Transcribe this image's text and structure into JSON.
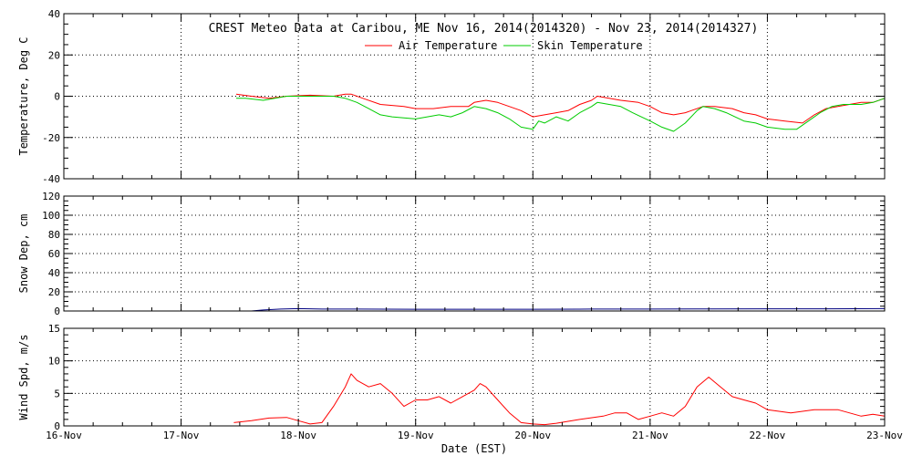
{
  "chart_data": {
    "type": "line",
    "title": "CREST Meteo Data at Caribou, ME   Nov 16, 2014(2014320) - Nov 23, 2014(2014327)",
    "xlabel": "Date (EST)",
    "x_ticks": [
      "16-Nov",
      "17-Nov",
      "18-Nov",
      "19-Nov",
      "20-Nov",
      "21-Nov",
      "22-Nov",
      "23-Nov"
    ],
    "x_range_days": [
      0,
      7
    ],
    "grid": true,
    "legend_position": "top-center",
    "panels": [
      {
        "id": "temperature",
        "ylabel": "Temperature, Deg C",
        "ylim": [
          -40,
          40
        ],
        "y_ticks": [
          -40,
          -20,
          0,
          20,
          40
        ],
        "series": [
          {
            "name": "Air Temperature",
            "color": "#ff0000",
            "points": [
              [
                1.47,
                1
              ],
              [
                1.6,
                0
              ],
              [
                1.75,
                -1
              ],
              [
                1.9,
                0
              ],
              [
                2.1,
                0.5
              ],
              [
                2.3,
                0
              ],
              [
                2.4,
                1
              ],
              [
                2.45,
                1
              ],
              [
                2.55,
                -1
              ],
              [
                2.7,
                -4
              ],
              [
                2.9,
                -5
              ],
              [
                3.0,
                -6
              ],
              [
                3.15,
                -6
              ],
              [
                3.3,
                -5
              ],
              [
                3.45,
                -5
              ],
              [
                3.5,
                -3
              ],
              [
                3.6,
                -2
              ],
              [
                3.7,
                -3
              ],
              [
                3.8,
                -5
              ],
              [
                3.9,
                -7
              ],
              [
                4.0,
                -10
              ],
              [
                4.1,
                -9
              ],
              [
                4.2,
                -8
              ],
              [
                4.3,
                -7
              ],
              [
                4.4,
                -4
              ],
              [
                4.5,
                -2
              ],
              [
                4.55,
                0
              ],
              [
                4.65,
                -1
              ],
              [
                4.75,
                -2
              ],
              [
                4.9,
                -3
              ],
              [
                5.0,
                -5
              ],
              [
                5.1,
                -8
              ],
              [
                5.2,
                -9
              ],
              [
                5.3,
                -8
              ],
              [
                5.35,
                -7
              ],
              [
                5.45,
                -5
              ],
              [
                5.55,
                -5
              ],
              [
                5.7,
                -6
              ],
              [
                5.8,
                -8
              ],
              [
                5.9,
                -9
              ],
              [
                6.0,
                -11
              ],
              [
                6.15,
                -12
              ],
              [
                6.3,
                -13
              ],
              [
                6.4,
                -9
              ],
              [
                6.5,
                -6
              ],
              [
                6.6,
                -5
              ],
              [
                6.7,
                -4
              ],
              [
                6.8,
                -3
              ],
              [
                6.9,
                -3
              ],
              [
                7.0,
                -1
              ]
            ]
          },
          {
            "name": "Skin Temperature",
            "color": "#00cc00",
            "points": [
              [
                1.47,
                -1
              ],
              [
                1.55,
                -1
              ],
              [
                1.7,
                -2
              ],
              [
                1.8,
                -1
              ],
              [
                1.9,
                0
              ],
              [
                2.1,
                0
              ],
              [
                2.3,
                0
              ],
              [
                2.4,
                -1
              ],
              [
                2.5,
                -3
              ],
              [
                2.6,
                -6
              ],
              [
                2.7,
                -9
              ],
              [
                2.8,
                -10
              ],
              [
                3.0,
                -11
              ],
              [
                3.1,
                -10
              ],
              [
                3.2,
                -9
              ],
              [
                3.3,
                -10
              ],
              [
                3.4,
                -8
              ],
              [
                3.5,
                -5
              ],
              [
                3.6,
                -6
              ],
              [
                3.7,
                -8
              ],
              [
                3.8,
                -11
              ],
              [
                3.9,
                -15
              ],
              [
                4.0,
                -16
              ],
              [
                4.05,
                -12
              ],
              [
                4.1,
                -13
              ],
              [
                4.2,
                -10
              ],
              [
                4.3,
                -12
              ],
              [
                4.4,
                -8
              ],
              [
                4.5,
                -5
              ],
              [
                4.55,
                -3
              ],
              [
                4.65,
                -4
              ],
              [
                4.75,
                -5
              ],
              [
                4.85,
                -8
              ],
              [
                5.0,
                -12
              ],
              [
                5.1,
                -15
              ],
              [
                5.2,
                -17
              ],
              [
                5.3,
                -13
              ],
              [
                5.4,
                -7
              ],
              [
                5.45,
                -5
              ],
              [
                5.55,
                -6
              ],
              [
                5.65,
                -8
              ],
              [
                5.8,
                -12
              ],
              [
                5.9,
                -13
              ],
              [
                6.0,
                -15
              ],
              [
                6.15,
                -16
              ],
              [
                6.25,
                -16
              ],
              [
                6.35,
                -12
              ],
              [
                6.45,
                -8
              ],
              [
                6.55,
                -5
              ],
              [
                6.65,
                -4
              ],
              [
                6.8,
                -4
              ],
              [
                6.9,
                -3
              ],
              [
                7.0,
                -1
              ]
            ]
          }
        ]
      },
      {
        "id": "snow_depth",
        "ylabel": "Snow Dep, cm",
        "ylim": [
          0,
          120
        ],
        "y_ticks": [
          0,
          20,
          40,
          60,
          80,
          100,
          120
        ],
        "series": [
          {
            "name": "",
            "color": "#000080",
            "points": [
              [
                1.6,
                0
              ],
              [
                1.7,
                1
              ],
              [
                1.85,
                2
              ],
              [
                2.0,
                2.5
              ],
              [
                2.2,
                2
              ],
              [
                2.5,
                2
              ],
              [
                3.0,
                1.8
              ],
              [
                3.5,
                1.8
              ],
              [
                4.0,
                1.8
              ],
              [
                4.5,
                2
              ],
              [
                5.0,
                2
              ],
              [
                5.5,
                2.2
              ],
              [
                6.0,
                2.3
              ],
              [
                6.5,
                2.3
              ],
              [
                7.0,
                2.5
              ]
            ]
          }
        ]
      },
      {
        "id": "wind_speed",
        "ylabel": "Wind Spd, m/s",
        "ylim": [
          0,
          15
        ],
        "y_ticks": [
          0,
          5,
          10,
          15
        ],
        "series": [
          {
            "name": "",
            "color": "#ff0000",
            "points": [
              [
                1.45,
                0.5
              ],
              [
                1.6,
                0.8
              ],
              [
                1.75,
                1.2
              ],
              [
                1.9,
                1.3
              ],
              [
                2.0,
                0.8
              ],
              [
                2.1,
                0.3
              ],
              [
                2.2,
                0.5
              ],
              [
                2.3,
                3
              ],
              [
                2.4,
                6
              ],
              [
                2.45,
                8
              ],
              [
                2.5,
                7
              ],
              [
                2.6,
                6
              ],
              [
                2.7,
                6.5
              ],
              [
                2.8,
                5
              ],
              [
                2.9,
                3
              ],
              [
                3.0,
                4
              ],
              [
                3.1,
                4
              ],
              [
                3.2,
                4.5
              ],
              [
                3.3,
                3.5
              ],
              [
                3.4,
                4.5
              ],
              [
                3.5,
                5.5
              ],
              [
                3.55,
                6.5
              ],
              [
                3.6,
                6
              ],
              [
                3.7,
                4
              ],
              [
                3.8,
                2
              ],
              [
                3.9,
                0.5
              ],
              [
                4.0,
                0.3
              ],
              [
                4.1,
                0.2
              ],
              [
                4.2,
                0.4
              ],
              [
                4.4,
                1
              ],
              [
                4.6,
                1.5
              ],
              [
                4.7,
                2
              ],
              [
                4.8,
                2
              ],
              [
                4.9,
                1
              ],
              [
                5.0,
                1.5
              ],
              [
                5.1,
                2
              ],
              [
                5.2,
                1.5
              ],
              [
                5.3,
                3
              ],
              [
                5.4,
                6
              ],
              [
                5.5,
                7.5
              ],
              [
                5.6,
                6
              ],
              [
                5.7,
                4.5
              ],
              [
                5.8,
                4
              ],
              [
                5.9,
                3.5
              ],
              [
                6.0,
                2.5
              ],
              [
                6.2,
                2
              ],
              [
                6.4,
                2.5
              ],
              [
                6.6,
                2.5
              ],
              [
                6.8,
                1.5
              ],
              [
                6.9,
                1.8
              ],
              [
                7.0,
                1.5
              ]
            ]
          }
        ]
      }
    ]
  }
}
